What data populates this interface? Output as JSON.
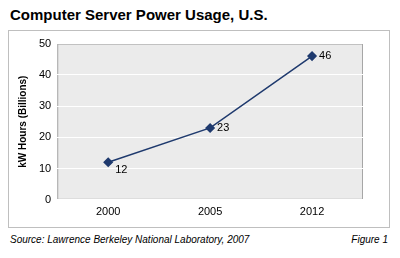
{
  "chart_data": {
    "type": "line",
    "title": "Computer Server Power Usage, U.S.",
    "y_label": "kW Hours (Billions)",
    "categories": [
      "2000",
      "2005",
      "2012"
    ],
    "values": [
      12,
      23,
      46
    ],
    "color": "#1f3a6e",
    "marker": "diamond",
    "ylim": [
      0,
      50
    ],
    "yticks": [
      0,
      10,
      20,
      30,
      40,
      50
    ],
    "grid": true,
    "data_labels": true,
    "annotations": [
      "Source: Lawrence Berkeley National Laboratory, 2007",
      "Figure 1"
    ]
  }
}
